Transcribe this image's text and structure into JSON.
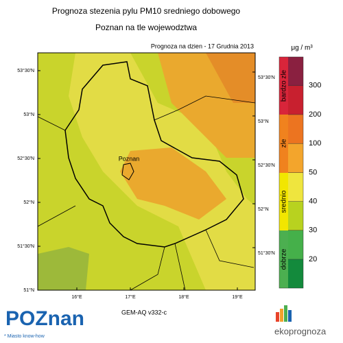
{
  "header": {
    "title": "Prognoza stezenia pylu PM10 sredniego dobowego",
    "subtitle": "Poznan na tle wojewodztwa",
    "date": "Prognoza na dzien -  17 Grudnia 2013"
  },
  "map": {
    "city": "Poznan",
    "lat_left": [
      "53°30'N",
      "53°N",
      "52°30'N",
      "52°N",
      "51°30'N",
      "51°N"
    ],
    "lat_right": [
      "53°30'N",
      "53°N",
      "52°30'N",
      "52°N",
      "51°30'N"
    ],
    "lon": [
      "16°E",
      "17°E",
      "18°E",
      "19°E"
    ],
    "model": "GEM-AQ v332-c"
  },
  "legend": {
    "unit": "μg / m³",
    "categories": [
      "dobrze",
      "srednio",
      "zle",
      "bardzo zle"
    ],
    "ticks": [
      20,
      30,
      40,
      50,
      100,
      200,
      300
    ]
  },
  "footer": {
    "logo_left": "POZnan",
    "slogan": "* Miasto know-how",
    "logo_right": "ekoprognoza"
  }
}
